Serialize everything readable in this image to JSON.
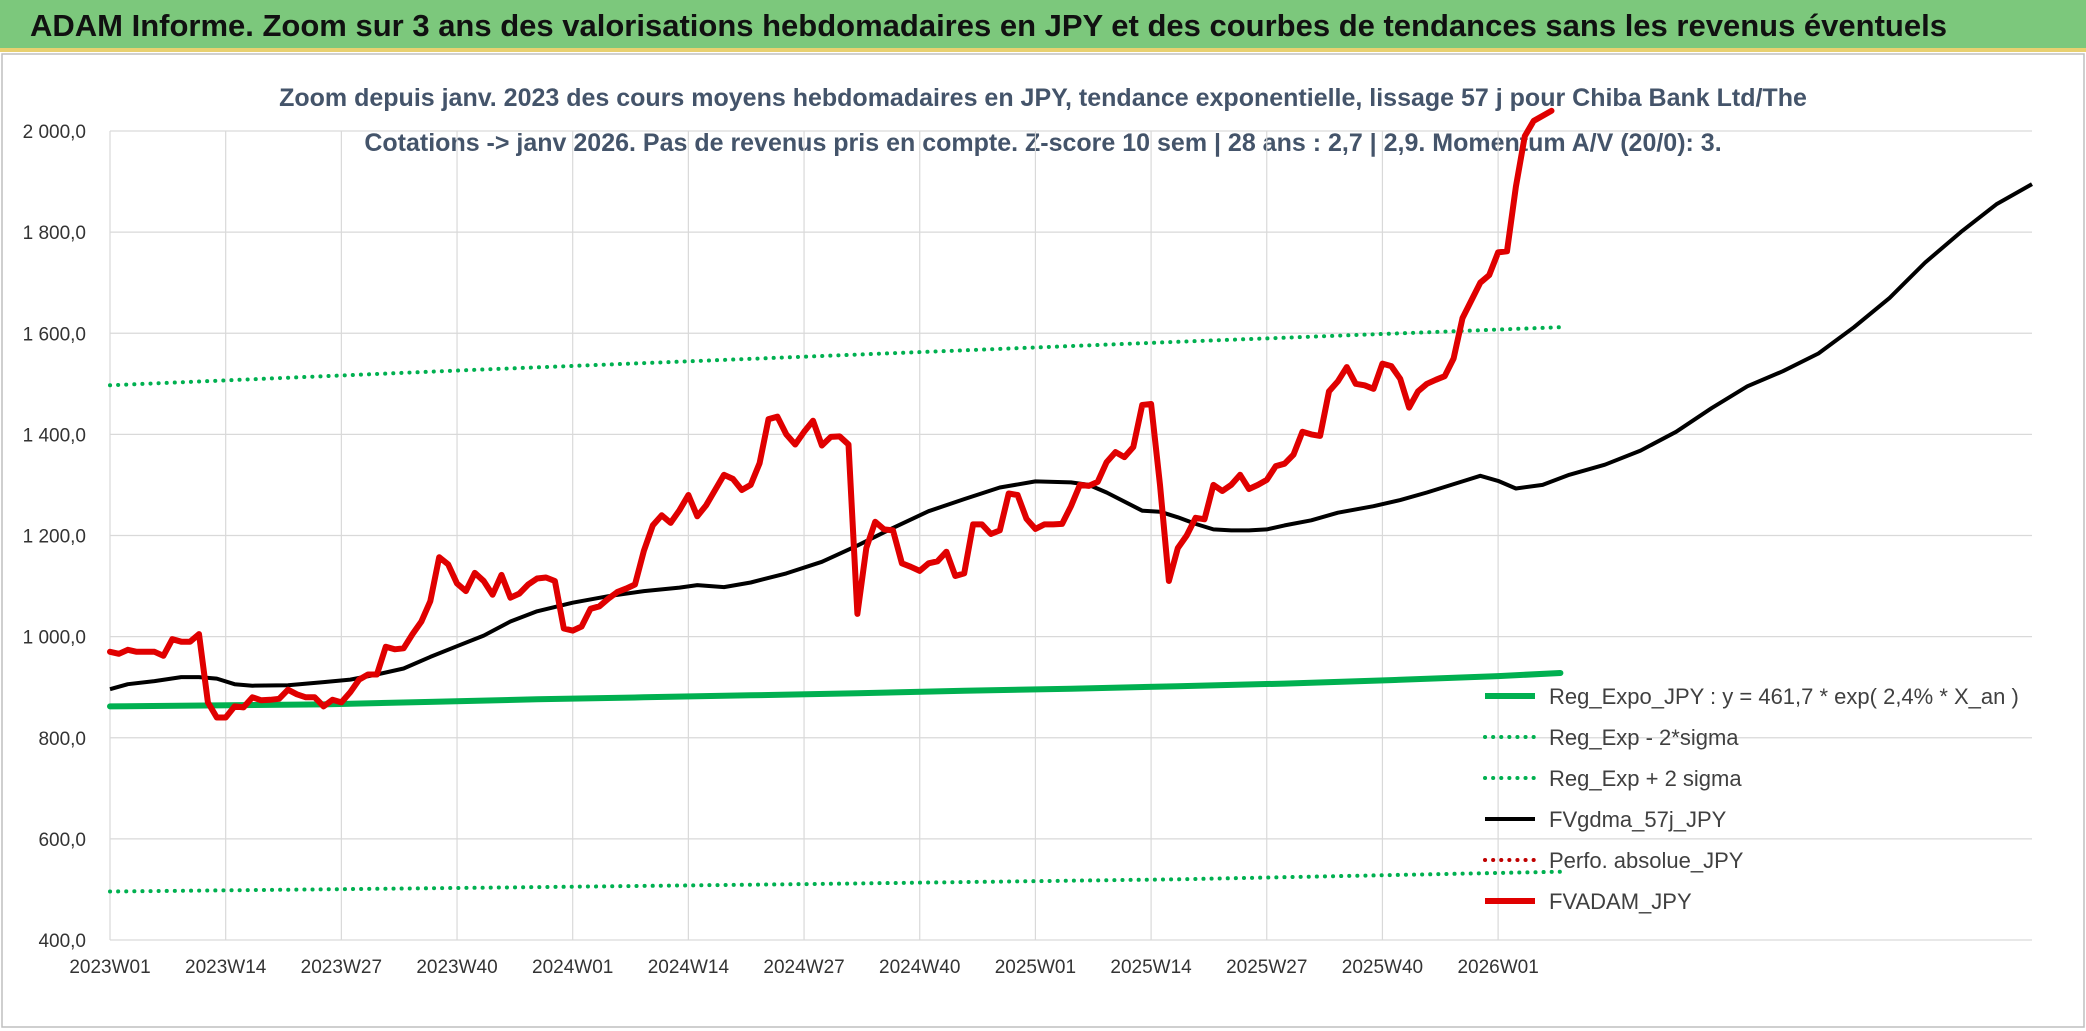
{
  "banner": {
    "text": "ADAM Informe. Zoom sur 3 ans des valorisations hebdomadaires en JPY et des courbes de tendances sans les revenus éventuels"
  },
  "chart_data": {
    "type": "line",
    "title": "Zoom depuis janv. 2023 des cours moyens hebdomadaires en JPY, tendance exponentielle, lissage 57 j pour Chiba Bank Ltd/The",
    "subtitle": "Cotations -> janv 2026. Pas de revenus pris en compte. Z-score 10 sem | 28 ans : 2,7 | 2,9. Momentum A/V (20/0): 3.",
    "x_tick_labels": [
      "2023W01",
      "2023W14",
      "2023W27",
      "2023W40",
      "2024W01",
      "2024W14",
      "2024W27",
      "2024W40",
      "2025W01",
      "2025W14",
      "2025W27",
      "2025W40",
      "2026W01"
    ],
    "x_range_weeks": [
      0,
      163
    ],
    "y_ticks": [
      "400,0",
      "600,0",
      "800,0",
      "1 000,0",
      "1 200,0",
      "1 400,0",
      "1 600,0",
      "1 800,0",
      "2 000,0"
    ],
    "ylim": [
      400,
      2000
    ],
    "grid": true,
    "legend_position": "bottom-right",
    "series": [
      {
        "name": "Reg_Expo_JPY : y = 461,7 * exp( 2,4% * X_an )",
        "color": "#00b050",
        "style": "thick",
        "points": [
          [
            0,
            862
          ],
          [
            12,
            864
          ],
          [
            24,
            866
          ],
          [
            36,
            871
          ],
          [
            48,
            876
          ],
          [
            60,
            880
          ],
          [
            72,
            884
          ],
          [
            84,
            888
          ],
          [
            96,
            893
          ],
          [
            108,
            897
          ],
          [
            120,
            902
          ],
          [
            132,
            907
          ],
          [
            144,
            914
          ],
          [
            156,
            922
          ],
          [
            163,
            928
          ]
        ]
      },
      {
        "name": "Reg_Exp - 2*sigma",
        "color": "#00b050",
        "style": "dotted",
        "points": [
          [
            0,
            496
          ],
          [
            40,
            503
          ],
          [
            80,
            511
          ],
          [
            120,
            520
          ],
          [
            163,
            535
          ]
        ]
      },
      {
        "name": "Reg_Exp + 2 sigma",
        "color": "#00b050",
        "style": "dotted",
        "points": [
          [
            0,
            1497
          ],
          [
            40,
            1527
          ],
          [
            80,
            1555
          ],
          [
            120,
            1583
          ],
          [
            163,
            1612
          ]
        ]
      },
      {
        "name": "FVgdma_57j_JPY",
        "color": "#000000",
        "style": "solid",
        "points": [
          [
            0,
            896
          ],
          [
            2,
            906
          ],
          [
            5,
            912
          ],
          [
            8,
            920
          ],
          [
            10,
            920
          ],
          [
            12,
            917
          ],
          [
            14,
            906
          ],
          [
            16,
            903
          ],
          [
            20,
            904
          ],
          [
            24,
            910
          ],
          [
            27,
            915
          ],
          [
            30,
            925
          ],
          [
            33,
            937
          ],
          [
            36,
            960
          ],
          [
            39,
            981
          ],
          [
            42,
            1002
          ],
          [
            45,
            1030
          ],
          [
            48,
            1050
          ],
          [
            52,
            1067
          ],
          [
            56,
            1080
          ],
          [
            60,
            1090
          ],
          [
            64,
            1097
          ],
          [
            66,
            1102
          ],
          [
            69,
            1098
          ],
          [
            72,
            1107
          ],
          [
            76,
            1125
          ],
          [
            80,
            1148
          ],
          [
            84,
            1180
          ],
          [
            88,
            1215
          ],
          [
            92,
            1248
          ],
          [
            96,
            1272
          ],
          [
            100,
            1295
          ],
          [
            104,
            1307
          ],
          [
            108,
            1305
          ],
          [
            110,
            1300
          ],
          [
            112,
            1285
          ],
          [
            116,
            1249
          ],
          [
            118,
            1247
          ],
          [
            120,
            1236
          ],
          [
            122,
            1223
          ],
          [
            124,
            1212
          ],
          [
            126,
            1210
          ],
          [
            128,
            1210
          ],
          [
            130,
            1212
          ],
          [
            132,
            1220
          ],
          [
            135,
            1230
          ],
          [
            138,
            1245
          ],
          [
            142,
            1258
          ],
          [
            145,
            1270
          ],
          [
            148,
            1285
          ],
          [
            152,
            1307
          ],
          [
            154,
            1318
          ],
          [
            156,
            1308
          ],
          [
            158,
            1293
          ],
          [
            161,
            1300
          ],
          [
            164,
            1320
          ],
          [
            168,
            1340
          ],
          [
            172,
            1368
          ],
          [
            176,
            1405
          ],
          [
            180,
            1452
          ],
          [
            184,
            1495
          ],
          [
            188,
            1525
          ],
          [
            192,
            1560
          ],
          [
            196,
            1612
          ],
          [
            200,
            1670
          ],
          [
            204,
            1740
          ],
          [
            208,
            1800
          ],
          [
            212,
            1855
          ],
          [
            216,
            1895
          ]
        ]
      },
      {
        "name": "Perfo. absolue_JPY",
        "color": "#c00000",
        "style": "dotted",
        "points": []
      },
      {
        "name": "FVADAM_JPY",
        "color": "#e00000",
        "style": "thick",
        "points": [
          [
            0,
            970
          ],
          [
            1,
            966
          ],
          [
            2,
            974
          ],
          [
            3,
            970
          ],
          [
            5,
            970
          ],
          [
            6,
            962
          ],
          [
            7,
            995
          ],
          [
            8,
            990
          ],
          [
            9,
            990
          ],
          [
            10,
            1005
          ],
          [
            11,
            870
          ],
          [
            12,
            840
          ],
          [
            13,
            840
          ],
          [
            14,
            862
          ],
          [
            15,
            860
          ],
          [
            16,
            880
          ],
          [
            17,
            874
          ],
          [
            18,
            875
          ],
          [
            19,
            877
          ],
          [
            20,
            895
          ],
          [
            21,
            886
          ],
          [
            22,
            880
          ],
          [
            23,
            880
          ],
          [
            24,
            862
          ],
          [
            25,
            875
          ],
          [
            26,
            870
          ],
          [
            27,
            890
          ],
          [
            28,
            915
          ],
          [
            29,
            925
          ],
          [
            30,
            925
          ],
          [
            31,
            980
          ],
          [
            32,
            975
          ],
          [
            33,
            977
          ],
          [
            34,
            1005
          ],
          [
            35,
            1030
          ],
          [
            36,
            1070
          ],
          [
            37,
            1157
          ],
          [
            38,
            1143
          ],
          [
            39,
            1105
          ],
          [
            40,
            1090
          ],
          [
            41,
            1126
          ],
          [
            42,
            1110
          ],
          [
            43,
            1083
          ],
          [
            44,
            1122
          ],
          [
            45,
            1077
          ],
          [
            46,
            1085
          ],
          [
            47,
            1103
          ],
          [
            48,
            1115
          ],
          [
            49,
            1117
          ],
          [
            50,
            1110
          ],
          [
            51,
            1016
          ],
          [
            52,
            1012
          ],
          [
            53,
            1020
          ],
          [
            54,
            1055
          ],
          [
            55,
            1060
          ],
          [
            56,
            1075
          ],
          [
            57,
            1088
          ],
          [
            58,
            1095
          ],
          [
            59,
            1103
          ],
          [
            60,
            1170
          ],
          [
            61,
            1220
          ],
          [
            62,
            1240
          ],
          [
            63,
            1225
          ],
          [
            64,
            1250
          ],
          [
            65,
            1280
          ],
          [
            66,
            1238
          ],
          [
            67,
            1260
          ],
          [
            68,
            1290
          ],
          [
            69,
            1320
          ],
          [
            70,
            1312
          ],
          [
            71,
            1290
          ],
          [
            72,
            1300
          ],
          [
            73,
            1343
          ],
          [
            74,
            1430
          ],
          [
            75,
            1435
          ],
          [
            76,
            1400
          ],
          [
            77,
            1380
          ],
          [
            78,
            1405
          ],
          [
            79,
            1427
          ],
          [
            80,
            1378
          ],
          [
            81,
            1395
          ],
          [
            82,
            1396
          ],
          [
            83,
            1380
          ],
          [
            84,
            1045
          ],
          [
            85,
            1175
          ],
          [
            86,
            1227
          ],
          [
            87,
            1212
          ],
          [
            88,
            1210
          ],
          [
            89,
            1145
          ],
          [
            90,
            1138
          ],
          [
            91,
            1130
          ],
          [
            92,
            1145
          ],
          [
            93,
            1149
          ],
          [
            94,
            1168
          ],
          [
            95,
            1120
          ],
          [
            96,
            1125
          ],
          [
            97,
            1222
          ],
          [
            98,
            1222
          ],
          [
            99,
            1203
          ],
          [
            100,
            1210
          ],
          [
            101,
            1283
          ],
          [
            102,
            1280
          ],
          [
            103,
            1233
          ],
          [
            104,
            1213
          ],
          [
            105,
            1222
          ],
          [
            106,
            1222
          ],
          [
            107,
            1223
          ],
          [
            108,
            1258
          ],
          [
            109,
            1300
          ],
          [
            110,
            1298
          ],
          [
            111,
            1306
          ],
          [
            112,
            1345
          ],
          [
            113,
            1365
          ],
          [
            114,
            1355
          ],
          [
            115,
            1375
          ],
          [
            116,
            1458
          ],
          [
            117,
            1460
          ],
          [
            118,
            1300
          ],
          [
            119,
            1110
          ],
          [
            120,
            1175
          ],
          [
            121,
            1200
          ],
          [
            122,
            1235
          ],
          [
            123,
            1232
          ],
          [
            124,
            1300
          ],
          [
            125,
            1288
          ],
          [
            126,
            1300
          ],
          [
            127,
            1320
          ],
          [
            128,
            1292
          ],
          [
            129,
            1300
          ],
          [
            130,
            1310
          ],
          [
            131,
            1337
          ],
          [
            132,
            1342
          ],
          [
            133,
            1360
          ],
          [
            134,
            1405
          ],
          [
            135,
            1400
          ],
          [
            136,
            1397
          ],
          [
            137,
            1485
          ],
          [
            138,
            1505
          ],
          [
            139,
            1533
          ],
          [
            140,
            1500
          ],
          [
            141,
            1497
          ],
          [
            142,
            1490
          ],
          [
            143,
            1540
          ],
          [
            144,
            1535
          ],
          [
            145,
            1510
          ],
          [
            146,
            1453
          ],
          [
            147,
            1485
          ],
          [
            148,
            1500
          ],
          [
            149,
            1508
          ],
          [
            150,
            1515
          ],
          [
            151,
            1550
          ],
          [
            152,
            1630
          ],
          [
            153,
            1665
          ],
          [
            154,
            1700
          ],
          [
            155,
            1715
          ],
          [
            156,
            1760
          ],
          [
            157,
            1762
          ],
          [
            158,
            1890
          ],
          [
            159,
            1990
          ],
          [
            160,
            2020
          ],
          [
            162,
            2040
          ]
        ]
      }
    ]
  }
}
